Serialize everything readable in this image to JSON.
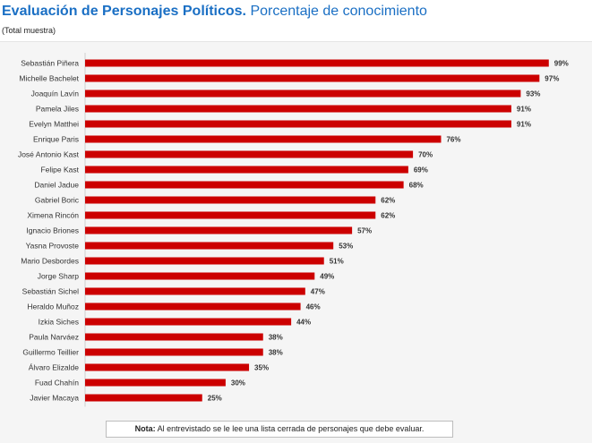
{
  "title": {
    "bold": "Evaluación de Personajes Políticos.",
    "rest": "Porcentaje de conocimiento"
  },
  "subtitle": "(Total muestra)",
  "note": {
    "label": "Nota:",
    "text": "Al entrevistado se le lee una lista cerrada de personajes que debe evaluar."
  },
  "colors": {
    "bar": "#cc0000",
    "title": "#1a6fc4"
  },
  "chart_data": {
    "type": "bar",
    "orientation": "horizontal",
    "title": "Evaluación de Personajes Políticos. Porcentaje de conocimiento",
    "subtitle": "(Total muestra)",
    "value_suffix": "%",
    "xlim": [
      0,
      100
    ],
    "grid": false,
    "categories": [
      "Sebastián Piñera",
      "Michelle Bachelet",
      "Joaquín Lavín",
      "Pamela Jiles",
      "Evelyn Matthei",
      "Enrique Paris",
      "José Antonio Kast",
      "Felipe Kast",
      "Daniel Jadue",
      "Gabriel Boric",
      "Ximena Rincón",
      "Ignacio Briones",
      "Yasna Provoste",
      "Mario Desbordes",
      "Jorge Sharp",
      "Sebastián Sichel",
      "Heraldo Muñoz",
      "Izkia Siches",
      "Paula Narváez",
      "Guillermo Teillier",
      "Álvaro Elizalde",
      "Fuad Chahín",
      "Javier Macaya"
    ],
    "values": [
      99,
      97,
      93,
      91,
      91,
      76,
      70,
      69,
      68,
      62,
      62,
      57,
      53,
      51,
      49,
      47,
      46,
      44,
      38,
      38,
      35,
      30,
      25
    ],
    "value_labels": [
      "99%",
      "97%",
      "93%",
      "91%",
      "91%",
      "76%",
      "70%",
      "69%",
      "68%",
      "62%",
      "62%",
      "57%",
      "53%",
      "51%",
      "49%",
      "47%",
      "46%",
      "44%",
      "38%",
      "38%",
      "35%",
      "30%",
      "25%"
    ]
  }
}
